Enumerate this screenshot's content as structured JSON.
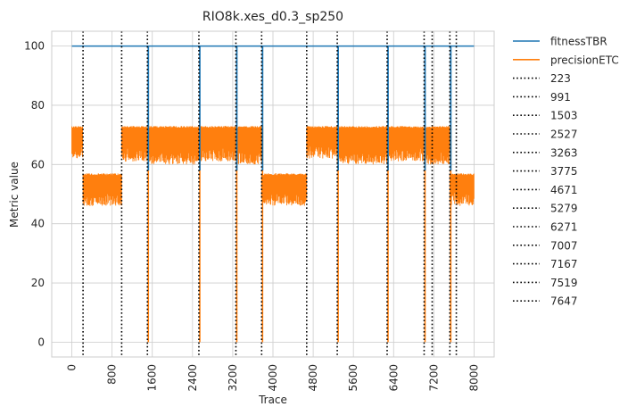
{
  "chart_data": {
    "type": "line",
    "title": "RIO8k.xes_d0.3_sp250",
    "xlabel": "Trace",
    "ylabel": "Metric value",
    "xlim": [
      -400,
      8400
    ],
    "ylim": [
      -5,
      105
    ],
    "xticks": [
      0,
      800,
      1600,
      2400,
      3200,
      4000,
      4800,
      5600,
      6400,
      7200,
      8000
    ],
    "yticks": [
      0,
      20,
      40,
      60,
      80,
      100
    ],
    "grid": true,
    "legend_position": "outside-right",
    "series": [
      {
        "name": "fitnessTBR",
        "color": "#1f77b4",
        "x": [
          0,
          8000
        ],
        "y": [
          100,
          100
        ],
        "dips": [
          1503,
          2527,
          3263,
          3775,
          5279,
          6271,
          7007,
          7519
        ]
      },
      {
        "name": "precisionETC",
        "color": "#ff7f0e",
        "segments": [
          {
            "x": [
              0,
              223
            ],
            "low": 62,
            "high": 73
          },
          {
            "x": [
              223,
              991
            ],
            "low": 46,
            "high": 57
          },
          {
            "x": [
              991,
              1503
            ],
            "low": 61,
            "high": 73
          },
          {
            "x": [
              1503,
              2527
            ],
            "low": 60,
            "high": 73
          },
          {
            "x": [
              2527,
              3263
            ],
            "low": 61,
            "high": 73
          },
          {
            "x": [
              3263,
              3775
            ],
            "low": 60,
            "high": 73
          },
          {
            "x": [
              3775,
              4671
            ],
            "low": 46,
            "high": 57
          },
          {
            "x": [
              4671,
              5279
            ],
            "low": 62,
            "high": 73
          },
          {
            "x": [
              5279,
              6271
            ],
            "low": 60,
            "high": 73
          },
          {
            "x": [
              6271,
              7007
            ],
            "low": 61,
            "high": 73
          },
          {
            "x": [
              7007,
              7519
            ],
            "low": 60,
            "high": 73
          },
          {
            "x": [
              7519,
              8000
            ],
            "low": 46,
            "high": 57
          }
        ],
        "dips_to_zero": [
          1503,
          2527,
          3263,
          3775,
          5279,
          6271,
          7007,
          7519
        ]
      }
    ],
    "drift_lines": [
      {
        "name": "223",
        "x": 223
      },
      {
        "name": "991",
        "x": 991
      },
      {
        "name": "1503",
        "x": 1503
      },
      {
        "name": "2527",
        "x": 2527
      },
      {
        "name": "3263",
        "x": 3263
      },
      {
        "name": "3775",
        "x": 3775
      },
      {
        "name": "4671",
        "x": 4671
      },
      {
        "name": "5279",
        "x": 5279
      },
      {
        "name": "6271",
        "x": 6271
      },
      {
        "name": "7007",
        "x": 7007
      },
      {
        "name": "7167",
        "x": 7167
      },
      {
        "name": "7519",
        "x": 7519
      },
      {
        "name": "7647",
        "x": 7647
      }
    ],
    "drift_line_color": "#000000"
  }
}
